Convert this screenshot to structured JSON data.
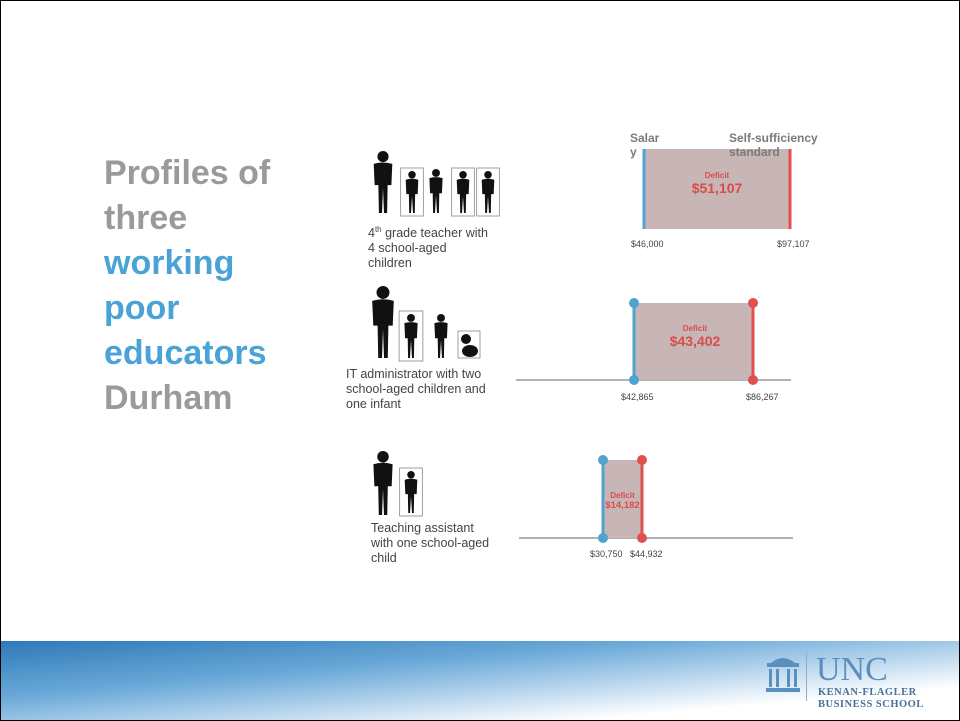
{
  "title_lines": [
    "Profiles of",
    "three",
    "working",
    "poor",
    "educators",
    "Durham"
  ],
  "profiles": [
    {
      "caption_lead": "4",
      "caption_sup": "th",
      "caption_rest": " grade teacher with 4 school-aged children",
      "salary_label": "Salary",
      "standard_label": "Self-sufficiency standard",
      "deficit_label": "Deficit",
      "deficit": "$51,107",
      "salary": "$46,000",
      "standard": "$97,107"
    },
    {
      "caption": "IT administrator with two school-aged children and one infant",
      "deficit_label": "Deficit",
      "deficit": "$43,402",
      "salary": "$42,865",
      "standard": "$86,267"
    },
    {
      "caption": "Teaching assistant with one school-aged child",
      "deficit_label": "Deficit",
      "deficit": "$14,182",
      "salary": "$30,750",
      "standard": "$44,932"
    }
  ],
  "logo": {
    "name": "UNC",
    "line1": "KENAN-FLAGLER",
    "line2": "BUSINESS SCHOOL"
  }
}
